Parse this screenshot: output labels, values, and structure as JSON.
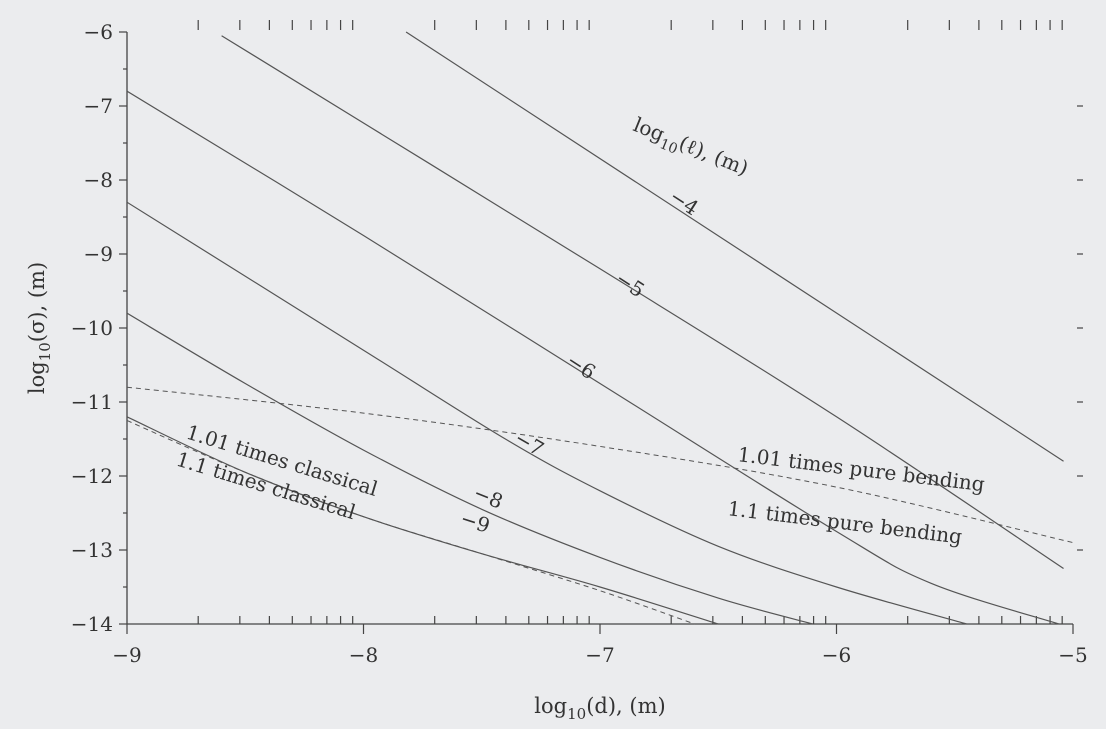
{
  "chart_data": {
    "type": "line",
    "title": "",
    "xlabel": {
      "prefix": "log",
      "sub": "10",
      "arg": "(d), (m)"
    },
    "ylabel": {
      "prefix": "log",
      "sub": "10",
      "arg": "(σ), (m)"
    },
    "xlim": [
      -9,
      -5
    ],
    "ylim": [
      -14,
      -6
    ],
    "x_ticks": [
      -9,
      -8,
      -7,
      -6,
      -5
    ],
    "x_tick_labels": [
      "−9",
      "−8",
      "−7",
      "−6",
      "−5"
    ],
    "y_ticks": [
      -6,
      -7,
      -8,
      -9,
      -10,
      -11,
      -12,
      -13,
      -14
    ],
    "y_tick_labels": [
      "−6",
      "−7",
      "−8",
      "−9",
      "−10",
      "−11",
      "−12",
      "−13",
      "−14"
    ],
    "grid": false,
    "legend_title": {
      "prefix": "log",
      "sub": "10",
      "arg": "(ℓ), (m)"
    },
    "series": [
      {
        "name": "−4",
        "style": "solid",
        "x": [
          -7.82,
          -5.04
        ],
        "y": [
          -6.0,
          -11.8
        ]
      },
      {
        "name": "−5",
        "style": "solid",
        "x": [
          -8.6,
          -7.0,
          -6.0,
          -5.04
        ],
        "y": [
          -6.05,
          -9.2,
          -11.2,
          -13.25
        ]
      },
      {
        "name": "−6",
        "style": "solid",
        "x": [
          -9.0,
          -8.0,
          -7.0,
          -6.0,
          -5.6,
          -5.06
        ],
        "y": [
          -6.8,
          -8.75,
          -10.75,
          -12.75,
          -13.45,
          -14.0
        ]
      },
      {
        "name": "−7",
        "style": "solid",
        "x": [
          -9.0,
          -8.0,
          -7.4,
          -7.0,
          -6.5,
          -6.0,
          -5.45
        ],
        "y": [
          -8.3,
          -10.3,
          -11.5,
          -12.2,
          -12.95,
          -13.5,
          -14.0
        ]
      },
      {
        "name": "−8",
        "style": "solid",
        "x": [
          -9.0,
          -8.5,
          -8.0,
          -7.5,
          -7.0,
          -6.5,
          -6.1
        ],
        "y": [
          -9.8,
          -10.75,
          -11.65,
          -12.45,
          -13.1,
          -13.65,
          -14.0
        ]
      },
      {
        "name": "−9",
        "style": "solid",
        "x": [
          -9.0,
          -8.5,
          -8.0,
          -7.5,
          -7.0,
          -6.5
        ],
        "y": [
          -11.2,
          -11.95,
          -12.55,
          -13.05,
          -13.5,
          -14.0
        ]
      },
      {
        "name": "1.01 times pure bending",
        "style": "dashed",
        "x": [
          -9.0,
          -8.0,
          -7.0,
          -6.0,
          -5.0
        ],
        "y": [
          -10.8,
          -11.15,
          -11.6,
          -12.15,
          -12.9
        ]
      },
      {
        "name": "1.01 times classical",
        "style": "dashed",
        "x": [
          -9.0,
          -8.5,
          -8.0,
          -7.5,
          -7.0,
          -6.6
        ],
        "y": [
          -11.25,
          -11.95,
          -12.55,
          -13.05,
          -13.55,
          -14.0
        ]
      }
    ],
    "curve_labels": [
      "−4",
      "−5",
      "−6",
      "−7",
      "−8",
      "−9"
    ],
    "annotations": {
      "pure_bending_101": "1.01 times pure bending",
      "pure_bending_11": "1.1  times pure bending",
      "classical_101": "1.01 times classical",
      "classical_11": "1.1  times classical"
    }
  }
}
